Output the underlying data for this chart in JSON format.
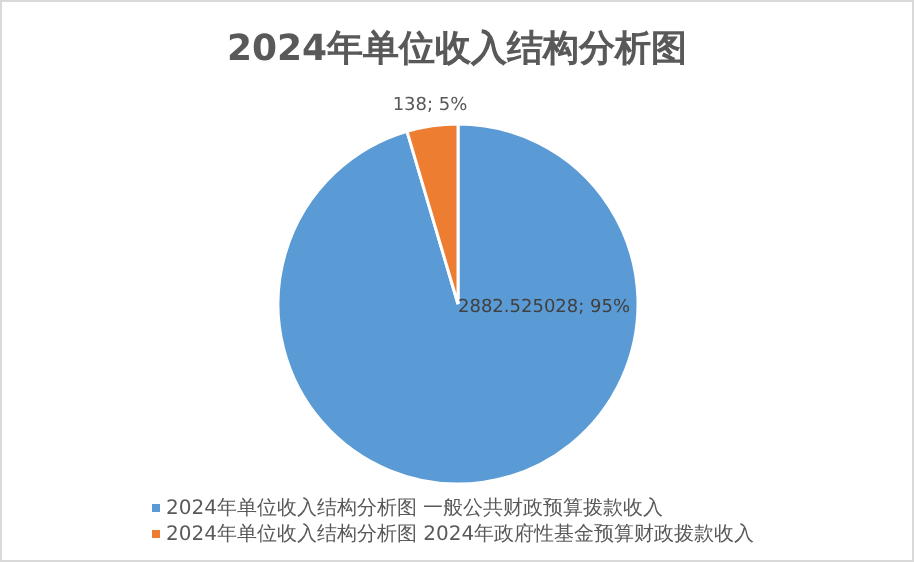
{
  "chart_data": {
    "type": "pie",
    "title": "2024年单位收入结构分析图",
    "categories": [
      "2024年单位收入结构分析图 一般公共财政预算拨款收入",
      "2024年单位收入结构分析图 2024年政府性基金预算财政拨款收入"
    ],
    "values": [
      2882.525028,
      138
    ],
    "colors": [
      "#5b9bd5",
      "#ed7d31"
    ],
    "value_labels": [
      "2882.525028; 95%",
      "138; 5%"
    ],
    "legend": "bottom"
  }
}
